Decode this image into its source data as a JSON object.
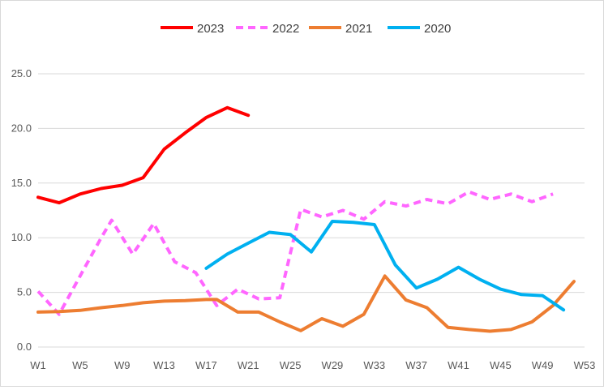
{
  "chart_data": {
    "type": "line",
    "title": "",
    "xlabel": "",
    "ylabel": "",
    "x_tick_labels": [
      "W1",
      "W5",
      "W9",
      "W13",
      "W17",
      "W21",
      "W25",
      "W29",
      "W33",
      "W37",
      "W41",
      "W45",
      "W49",
      "W53"
    ],
    "y_tick_labels": [
      "0.0",
      "5.0",
      "10.0",
      "15.0",
      "20.0",
      "25.0"
    ],
    "ylim": [
      0,
      25
    ],
    "xlim": [
      1,
      53
    ],
    "grid": "horizontal",
    "legend_position": "top-center",
    "series": [
      {
        "name": "2023",
        "color": "#ff0000",
        "style": "solid",
        "x": [
          1,
          3,
          5,
          7,
          9,
          11,
          13,
          15,
          17,
          19,
          21
        ],
        "y": [
          13.7,
          13.2,
          14.0,
          14.5,
          14.8,
          15.5,
          18.1,
          19.6,
          21.0,
          21.9,
          21.2
        ]
      },
      {
        "name": "2022",
        "color": "#ff66ff",
        "style": "dashed",
        "x": [
          1,
          3,
          5,
          7,
          8,
          10,
          12,
          14,
          16,
          18,
          20,
          22,
          24,
          26,
          28,
          30,
          32,
          34,
          36,
          38,
          40,
          42,
          44,
          46,
          48,
          50
        ],
        "y": [
          5.1,
          3.0,
          6.5,
          10.0,
          11.6,
          8.5,
          11.3,
          7.8,
          6.8,
          3.8,
          5.3,
          4.4,
          4.5,
          12.6,
          11.9,
          12.5,
          11.7,
          13.3,
          12.9,
          13.5,
          13.1,
          14.2,
          13.5,
          14.0,
          13.3,
          14.0
        ]
      },
      {
        "name": "2021",
        "color": "#ed7d31",
        "style": "solid",
        "x": [
          1,
          3,
          5,
          7,
          9,
          11,
          13,
          15,
          17,
          18,
          20,
          22,
          24,
          26,
          28,
          30,
          32,
          34,
          36,
          38,
          40,
          42,
          44,
          46,
          48,
          50,
          52
        ],
        "y": [
          3.2,
          3.25,
          3.35,
          3.6,
          3.8,
          4.05,
          4.2,
          4.25,
          4.35,
          4.35,
          3.2,
          3.2,
          2.3,
          1.5,
          2.6,
          1.9,
          3.0,
          6.5,
          4.3,
          3.6,
          1.8,
          1.6,
          1.45,
          1.6,
          2.3,
          3.8,
          6.0
        ]
      },
      {
        "name": "2020",
        "color": "#00b0f0",
        "style": "solid",
        "x": [
          17,
          19,
          21,
          23,
          25,
          27,
          29,
          31,
          33,
          35,
          37,
          39,
          41,
          43,
          45,
          47,
          49,
          51
        ],
        "y": [
          7.2,
          8.5,
          9.5,
          10.5,
          10.3,
          8.7,
          11.5,
          11.4,
          11.2,
          7.5,
          5.4,
          6.2,
          7.3,
          6.2,
          5.3,
          4.8,
          4.7,
          3.4
        ]
      }
    ]
  }
}
